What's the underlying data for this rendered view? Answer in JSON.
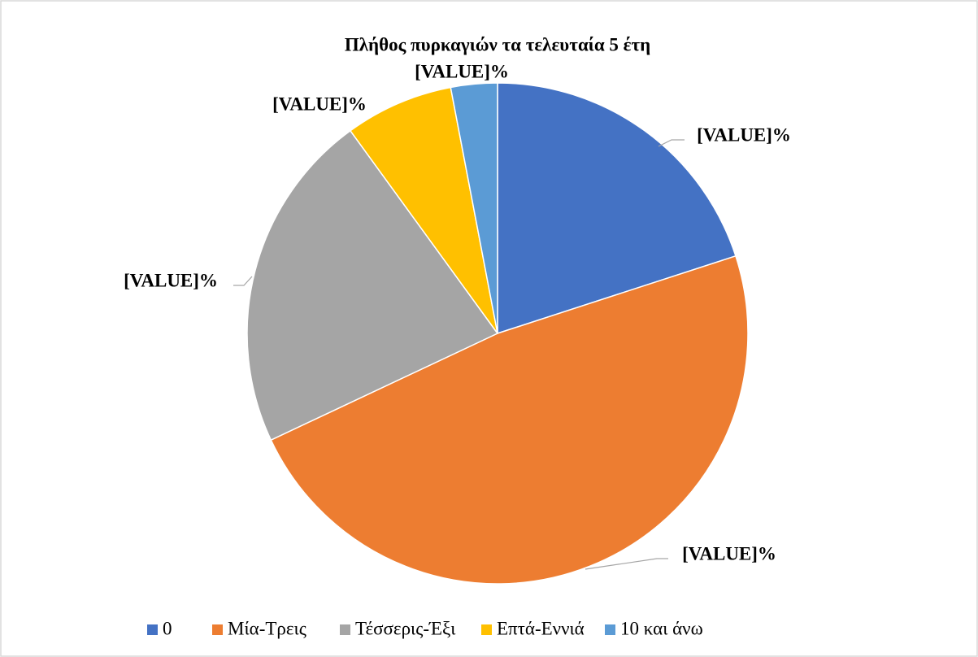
{
  "chart_data": {
    "type": "pie",
    "title": "Πλήθος πυρκαγιών τα τελευταία 5 έτη",
    "categories": [
      "0",
      "Μία-Τρεις",
      "Τέσσερις-Έξι",
      "Επτά-Εννιά",
      "10 και άνω"
    ],
    "values": [
      20,
      48,
      22,
      7,
      3
    ],
    "value_labels": [
      "[VALUE]%",
      "[VALUE]%",
      "[VALUE]%",
      "[VALUE]%",
      "[VALUE]%"
    ],
    "colors": [
      "#4472c4",
      "#ed7d31",
      "#a5a5a5",
      "#ffc000",
      "#5b9bd5"
    ],
    "legend": "bottom"
  }
}
